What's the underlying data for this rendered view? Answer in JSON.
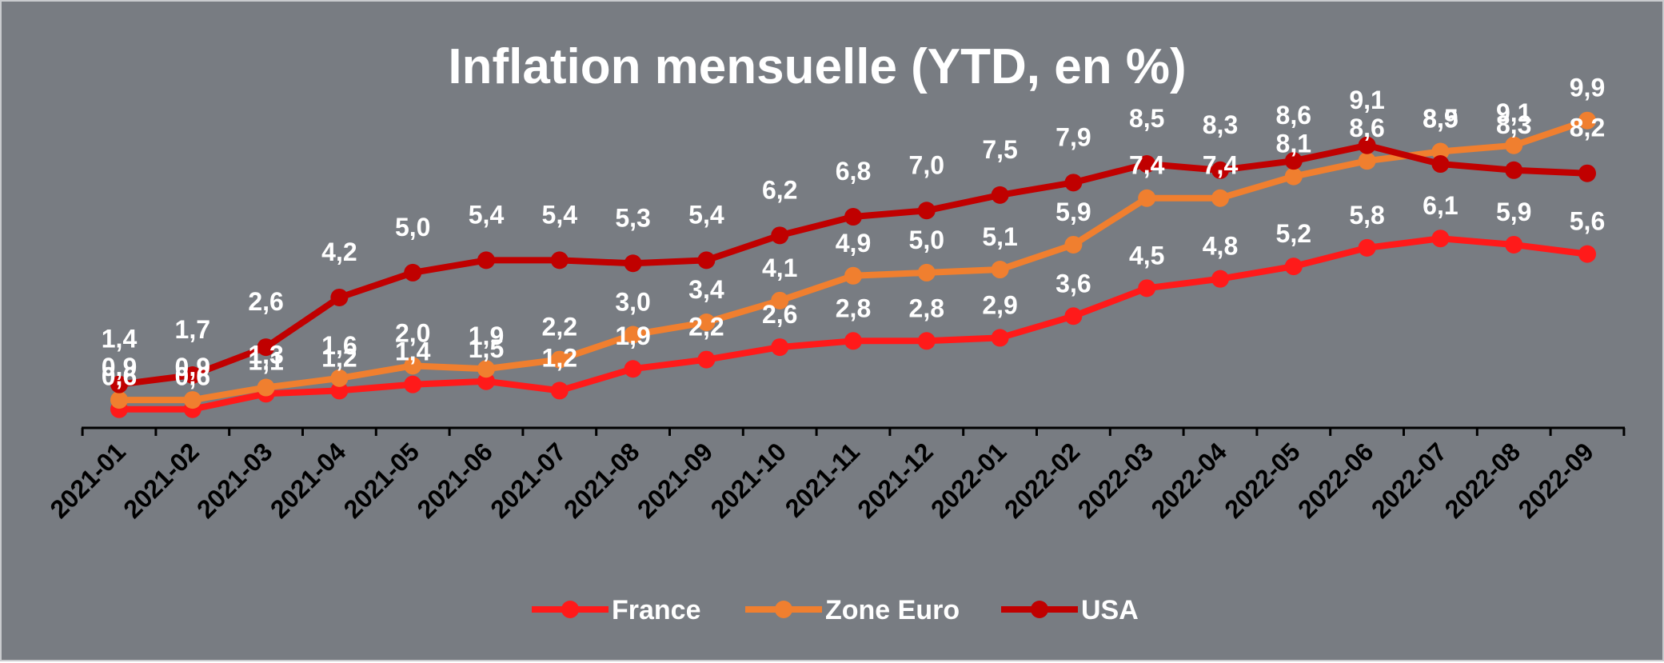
{
  "chart_data": {
    "type": "line",
    "title": "Inflation mensuelle (YTD, en %)",
    "xlabel": "",
    "ylabel": "",
    "categories": [
      "2021-01",
      "2021-02",
      "2021-03",
      "2021-04",
      "2021-05",
      "2021-06",
      "2021-07",
      "2021-08",
      "2021-09",
      "2021-10",
      "2021-11",
      "2021-12",
      "2022-01",
      "2022-02",
      "2022-03",
      "2022-04",
      "2022-05",
      "2022-06",
      "2022-07",
      "2022-08",
      "2022-09"
    ],
    "ylim": [
      0,
      11
    ],
    "grid": false,
    "legend_position": "bottom",
    "series": [
      {
        "name": "France",
        "color": "#ff1a1a",
        "values": [
          0.6,
          0.6,
          1.1,
          1.2,
          1.4,
          1.5,
          1.2,
          1.9,
          2.2,
          2.6,
          2.8,
          2.8,
          2.9,
          3.6,
          4.5,
          4.8,
          5.2,
          5.8,
          6.1,
          5.9,
          5.6
        ]
      },
      {
        "name": "Zone Euro",
        "color": "#f07f2f",
        "values": [
          0.9,
          0.9,
          1.3,
          1.6,
          2.0,
          1.9,
          2.2,
          3.0,
          3.4,
          4.1,
          4.9,
          5.0,
          5.1,
          5.9,
          7.4,
          7.4,
          8.1,
          8.6,
          8.9,
          9.1,
          9.9
        ]
      },
      {
        "name": "USA",
        "color": "#c00000",
        "values": [
          1.4,
          1.7,
          2.6,
          4.2,
          5.0,
          5.4,
          5.4,
          5.3,
          5.4,
          6.2,
          6.8,
          7.0,
          7.5,
          7.9,
          8.5,
          8.3,
          8.6,
          9.1,
          8.5,
          8.3,
          8.2
        ]
      }
    ]
  }
}
